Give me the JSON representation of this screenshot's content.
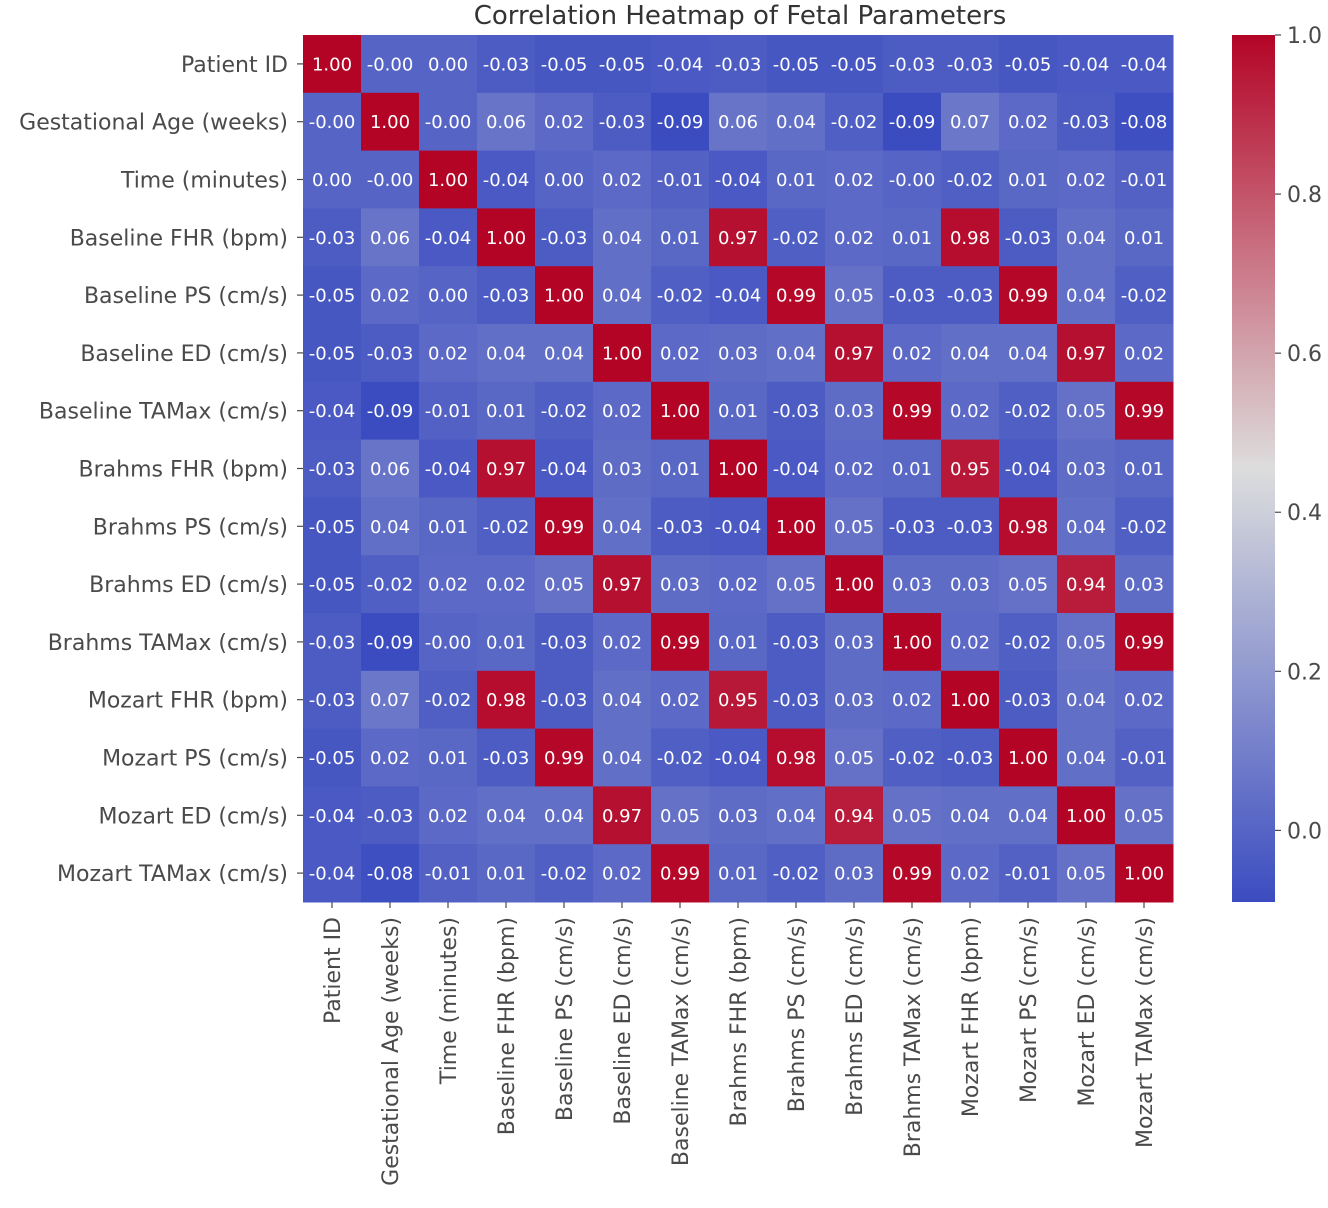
{
  "chart_data": {
    "type": "heatmap",
    "title": "Correlation Heatmap of Fetal Parameters",
    "labels": [
      "Patient ID",
      "Gestational Age (weeks)",
      "Time (minutes)",
      "Baseline FHR (bpm)",
      "Baseline PS (cm/s)",
      "Baseline ED (cm/s)",
      "Baseline TAMax (cm/s)",
      "Brahms FHR (bpm)",
      "Brahms PS (cm/s)",
      "Brahms ED (cm/s)",
      "Brahms TAMax (cm/s)",
      "Mozart FHR (bpm)",
      "Mozart PS (cm/s)",
      "Mozart ED (cm/s)",
      "Mozart TAMax (cm/s)"
    ],
    "cell_text": [
      [
        "1.00",
        "-0.00",
        "0.00",
        "-0.03",
        "-0.05",
        "-0.05",
        "-0.04",
        "-0.03",
        "-0.05",
        "-0.05",
        "-0.03",
        "-0.03",
        "-0.05",
        "-0.04",
        "-0.04"
      ],
      [
        "-0.00",
        "1.00",
        "-0.00",
        "0.06",
        "0.02",
        "-0.03",
        "-0.09",
        "0.06",
        "0.04",
        "-0.02",
        "-0.09",
        "0.07",
        "0.02",
        "-0.03",
        "-0.08"
      ],
      [
        "0.00",
        "-0.00",
        "1.00",
        "-0.04",
        "0.00",
        "0.02",
        "-0.01",
        "-0.04",
        "0.01",
        "0.02",
        "-0.00",
        "-0.02",
        "0.01",
        "0.02",
        "-0.01"
      ],
      [
        "-0.03",
        "0.06",
        "-0.04",
        "1.00",
        "-0.03",
        "0.04",
        "0.01",
        "0.97",
        "-0.02",
        "0.02",
        "0.01",
        "0.98",
        "-0.03",
        "0.04",
        "0.01"
      ],
      [
        "-0.05",
        "0.02",
        "0.00",
        "-0.03",
        "1.00",
        "0.04",
        "-0.02",
        "-0.04",
        "0.99",
        "0.05",
        "-0.03",
        "-0.03",
        "0.99",
        "0.04",
        "-0.02"
      ],
      [
        "-0.05",
        "-0.03",
        "0.02",
        "0.04",
        "0.04",
        "1.00",
        "0.02",
        "0.03",
        "0.04",
        "0.97",
        "0.02",
        "0.04",
        "0.04",
        "0.97",
        "0.02"
      ],
      [
        "-0.04",
        "-0.09",
        "-0.01",
        "0.01",
        "-0.02",
        "0.02",
        "1.00",
        "0.01",
        "-0.03",
        "0.03",
        "0.99",
        "0.02",
        "-0.02",
        "0.05",
        "0.99"
      ],
      [
        "-0.03",
        "0.06",
        "-0.04",
        "0.97",
        "-0.04",
        "0.03",
        "0.01",
        "1.00",
        "-0.04",
        "0.02",
        "0.01",
        "0.95",
        "-0.04",
        "0.03",
        "0.01"
      ],
      [
        "-0.05",
        "0.04",
        "0.01",
        "-0.02",
        "0.99",
        "0.04",
        "-0.03",
        "-0.04",
        "1.00",
        "0.05",
        "-0.03",
        "-0.03",
        "0.98",
        "0.04",
        "-0.02"
      ],
      [
        "-0.05",
        "-0.02",
        "0.02",
        "0.02",
        "0.05",
        "0.97",
        "0.03",
        "0.02",
        "0.05",
        "1.00",
        "0.03",
        "0.03",
        "0.05",
        "0.94",
        "0.03"
      ],
      [
        "-0.03",
        "-0.09",
        "-0.00",
        "0.01",
        "-0.03",
        "0.02",
        "0.99",
        "0.01",
        "-0.03",
        "0.03",
        "1.00",
        "0.02",
        "-0.02",
        "0.05",
        "0.99"
      ],
      [
        "-0.03",
        "0.07",
        "-0.02",
        "0.98",
        "-0.03",
        "0.04",
        "0.02",
        "0.95",
        "-0.03",
        "0.03",
        "0.02",
        "1.00",
        "-0.03",
        "0.04",
        "0.02"
      ],
      [
        "-0.05",
        "0.02",
        "0.01",
        "-0.03",
        "0.99",
        "0.04",
        "-0.02",
        "-0.04",
        "0.98",
        "0.05",
        "-0.02",
        "-0.03",
        "1.00",
        "0.04",
        "-0.01"
      ],
      [
        "-0.04",
        "-0.03",
        "0.02",
        "0.04",
        "0.04",
        "0.97",
        "0.05",
        "0.03",
        "0.04",
        "0.94",
        "0.05",
        "0.04",
        "0.04",
        "1.00",
        "0.05"
      ],
      [
        "-0.04",
        "-0.08",
        "-0.01",
        "0.01",
        "-0.02",
        "0.02",
        "0.99",
        "0.01",
        "-0.02",
        "0.03",
        "0.99",
        "0.02",
        "-0.01",
        "0.05",
        "1.00"
      ]
    ],
    "colormap": "coolwarm",
    "colormap_stops": [
      "#3b4cc0",
      "#dddddd",
      "#b40426"
    ],
    "vmin": -0.09,
    "vmax": 1.0,
    "colorbar_ticks": [
      "0.0",
      "0.2",
      "0.4",
      "0.6",
      "0.8",
      "1.0"
    ],
    "colorbar_tick_values": [
      0.0,
      0.2,
      0.4,
      0.6,
      0.8,
      1.0
    ],
    "grid": false
  }
}
